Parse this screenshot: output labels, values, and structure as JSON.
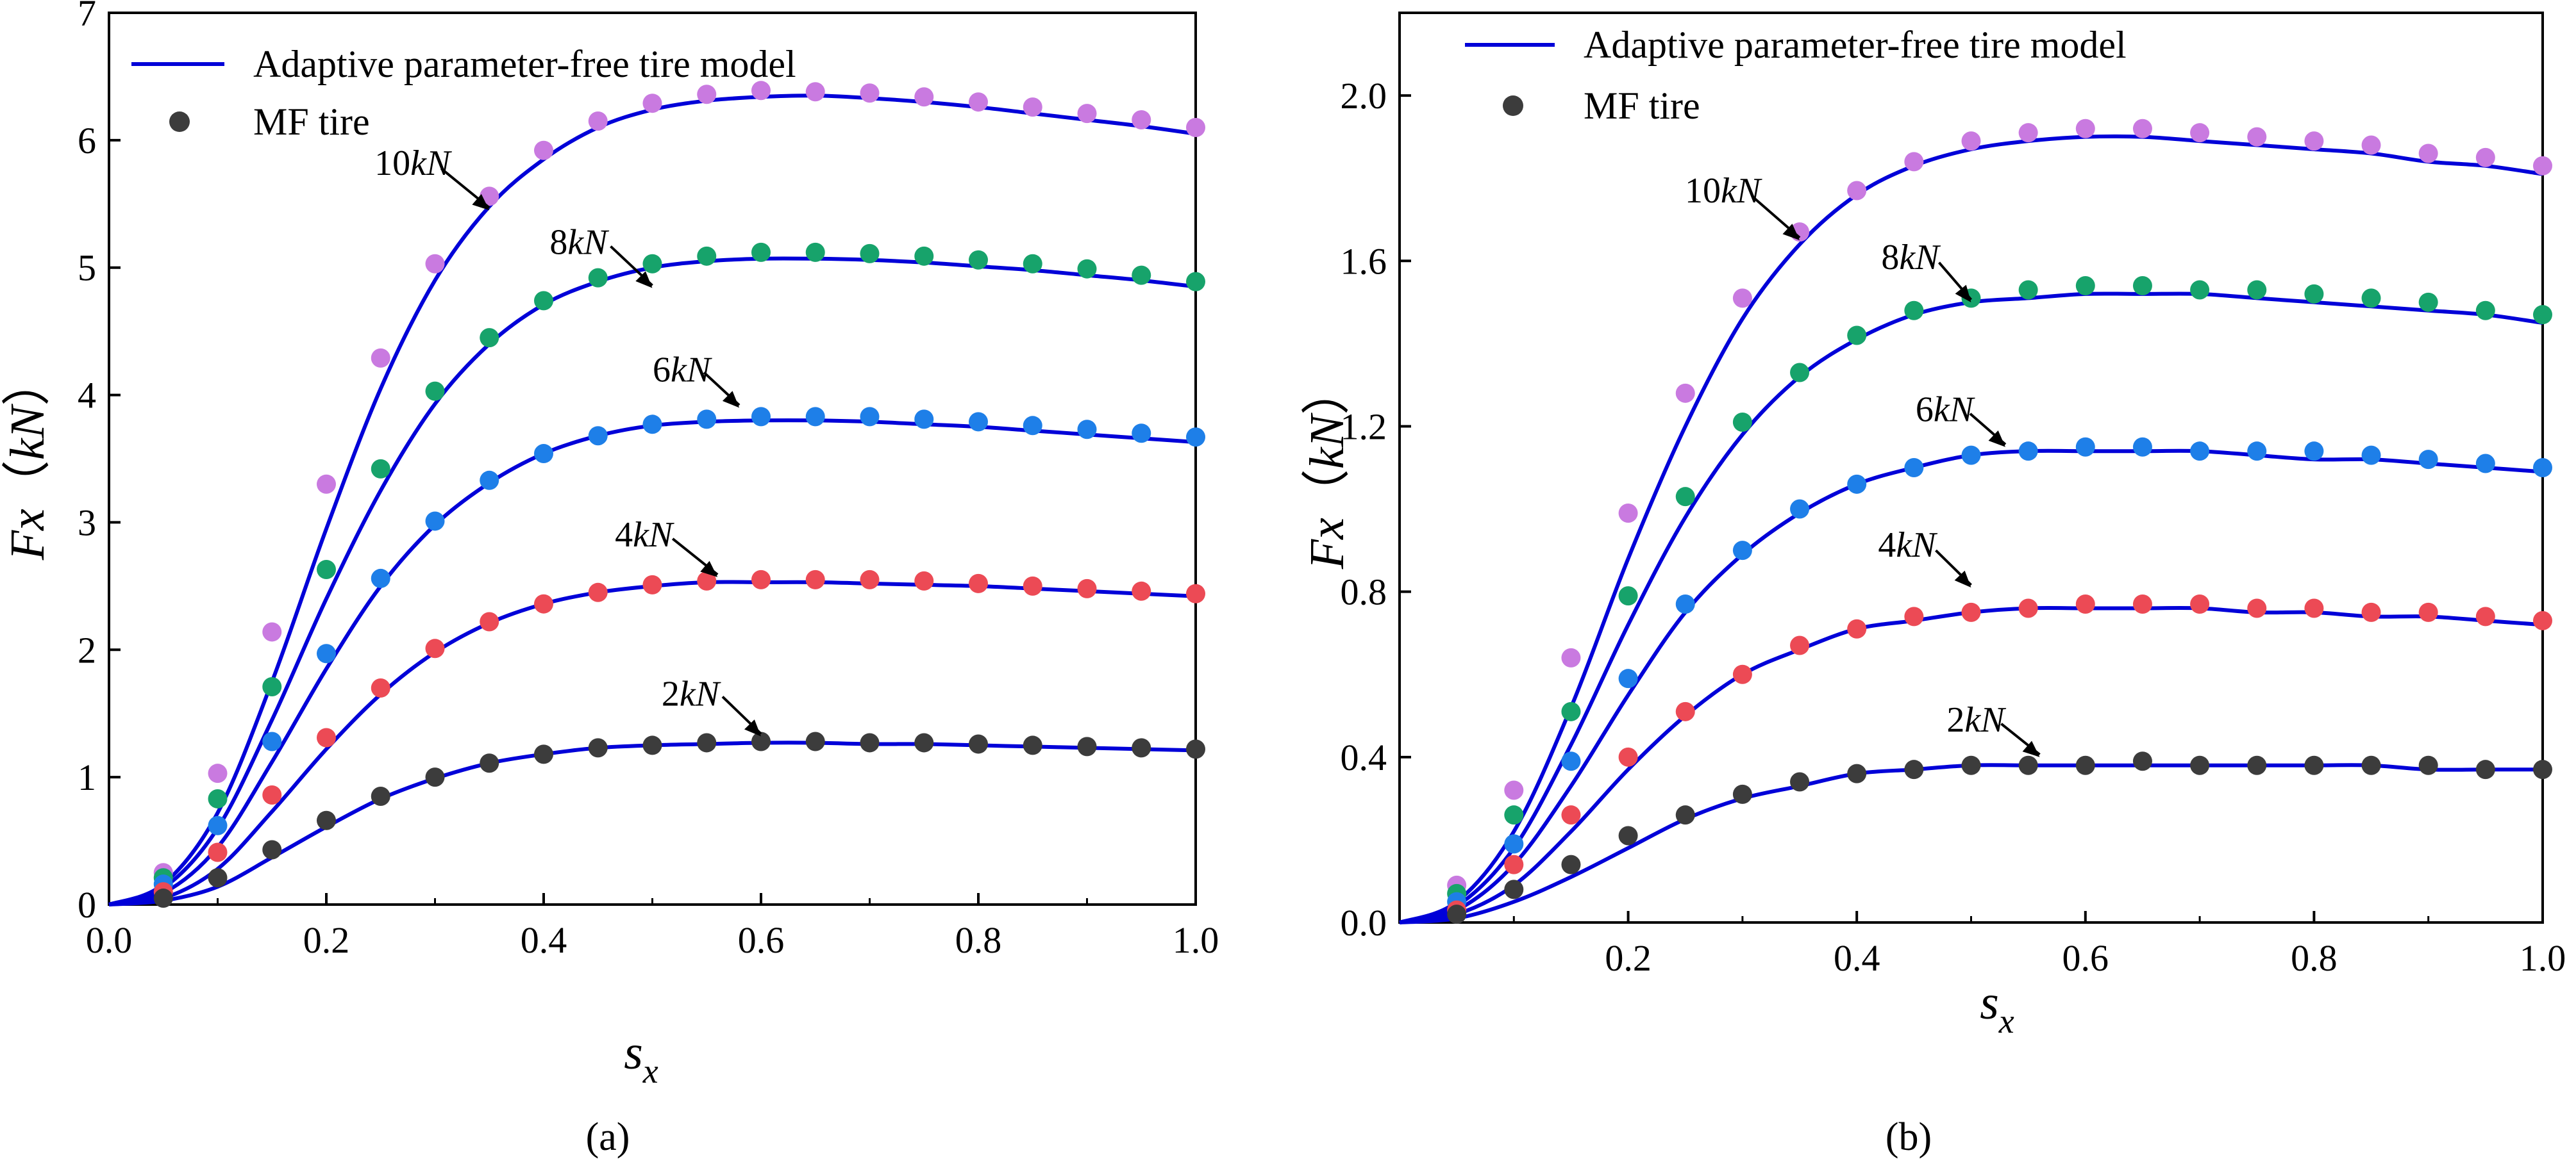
{
  "figure": {
    "captions": [
      "(a)",
      "(b)"
    ]
  },
  "chart_data": [
    {
      "id": "a",
      "type": "line",
      "caption": "(a)",
      "xlabel": "s",
      "xlabel_sub": "x",
      "ylabel": "Fx（kN）",
      "xlim": [
        0,
        1.0
      ],
      "ylim": [
        0,
        7
      ],
      "xticks": [
        0.0,
        0.2,
        0.4,
        0.6,
        0.8,
        1.0
      ],
      "xtick_labels": [
        "0.0",
        "0.2",
        "0.4",
        "0.6",
        "0.8",
        "1.0"
      ],
      "yticks": [
        0,
        1,
        2,
        3,
        4,
        5,
        6,
        7
      ],
      "ytick_labels": [
        "0",
        "1",
        "2",
        "3",
        "4",
        "5",
        "6",
        "7"
      ],
      "legend": {
        "position": "top-left",
        "entries": [
          {
            "label": "Adaptive parameter-free tire model",
            "marker": "line",
            "color": "#0000d8"
          },
          {
            "label": "MF tire",
            "marker": "dot",
            "color": "#3c3c3c"
          }
        ]
      },
      "grid": false,
      "model_line_color": "#0000d8",
      "x": [
        0.05,
        0.1,
        0.15,
        0.2,
        0.25,
        0.3,
        0.35,
        0.4,
        0.45,
        0.5,
        0.55,
        0.6,
        0.65,
        0.7,
        0.75,
        0.8,
        0.85,
        0.9,
        0.95,
        1.0
      ],
      "series": [
        {
          "name": "10kN",
          "label": "10kN",
          "color": "#c97ae0",
          "mf_values": [
            0.25,
            1.03,
            2.14,
            3.3,
            4.29,
            5.03,
            5.56,
            5.92,
            6.15,
            6.29,
            6.36,
            6.39,
            6.38,
            6.37,
            6.34,
            6.3,
            6.26,
            6.21,
            6.16,
            6.1
          ],
          "model_values": [
            0.16,
            0.72,
            1.75,
            2.95,
            4.05,
            4.9,
            5.48,
            5.85,
            6.1,
            6.24,
            6.31,
            6.34,
            6.35,
            6.33,
            6.3,
            6.26,
            6.21,
            6.16,
            6.11,
            6.05
          ],
          "annotation": {
            "x": 0.35,
            "y": 5.45
          }
        },
        {
          "name": "8kN",
          "label": "8kN",
          "color": "#17a36b",
          "mf_values": [
            0.21,
            0.83,
            1.71,
            2.63,
            3.42,
            4.03,
            4.45,
            4.74,
            4.92,
            5.03,
            5.09,
            5.12,
            5.12,
            5.11,
            5.09,
            5.06,
            5.03,
            4.99,
            4.94,
            4.89
          ],
          "model_values": [
            0.13,
            0.6,
            1.45,
            2.4,
            3.25,
            3.93,
            4.4,
            4.71,
            4.89,
            5.0,
            5.05,
            5.07,
            5.07,
            5.06,
            5.04,
            5.01,
            4.98,
            4.94,
            4.9,
            4.85
          ],
          "annotation": {
            "x": 0.5,
            "y": 4.84
          }
        },
        {
          "name": "6kN",
          "label": "6kN",
          "color": "#1e7fe8",
          "mf_values": [
            0.16,
            0.62,
            1.28,
            1.97,
            2.56,
            3.01,
            3.33,
            3.54,
            3.68,
            3.77,
            3.81,
            3.83,
            3.83,
            3.83,
            3.81,
            3.79,
            3.76,
            3.73,
            3.7,
            3.67
          ],
          "model_values": [
            0.09,
            0.45,
            1.12,
            1.85,
            2.5,
            2.98,
            3.31,
            3.54,
            3.68,
            3.76,
            3.79,
            3.8,
            3.8,
            3.79,
            3.77,
            3.75,
            3.72,
            3.69,
            3.66,
            3.63
          ],
          "annotation": {
            "x": 0.58,
            "y": 3.9
          }
        },
        {
          "name": "4kN",
          "label": "4kN",
          "color": "#ec4a55",
          "mf_values": [
            0.1,
            0.41,
            0.86,
            1.31,
            1.7,
            2.01,
            2.22,
            2.36,
            2.45,
            2.51,
            2.54,
            2.55,
            2.55,
            2.55,
            2.54,
            2.52,
            2.5,
            2.48,
            2.46,
            2.44
          ],
          "model_values": [
            0.05,
            0.28,
            0.73,
            1.22,
            1.65,
            1.98,
            2.21,
            2.36,
            2.45,
            2.5,
            2.53,
            2.53,
            2.53,
            2.52,
            2.51,
            2.5,
            2.48,
            2.46,
            2.44,
            2.42
          ],
          "annotation": {
            "x": 0.56,
            "y": 2.57
          }
        },
        {
          "name": "2kN",
          "label": "2kN",
          "color": "#3c3c3c",
          "mf_values": [
            0.05,
            0.21,
            0.43,
            0.66,
            0.85,
            1.0,
            1.11,
            1.18,
            1.23,
            1.25,
            1.27,
            1.28,
            1.28,
            1.27,
            1.27,
            1.26,
            1.25,
            1.24,
            1.23,
            1.22
          ],
          "model_values": [
            0.03,
            0.14,
            0.37,
            0.61,
            0.83,
            0.99,
            1.11,
            1.18,
            1.23,
            1.25,
            1.26,
            1.27,
            1.27,
            1.26,
            1.26,
            1.25,
            1.24,
            1.23,
            1.22,
            1.21
          ],
          "annotation": {
            "x": 0.6,
            "y": 1.32
          }
        }
      ]
    },
    {
      "id": "b",
      "type": "line",
      "caption": "(b)",
      "xlabel": "s",
      "xlabel_sub": "x",
      "ylabel": "Fx（kN）",
      "xlim": [
        0,
        1.0
      ],
      "ylim": [
        0,
        2.2
      ],
      "xticks": [
        0.2,
        0.4,
        0.6,
        0.8,
        1.0
      ],
      "xtick_labels": [
        "0.2",
        "0.4",
        "0.6",
        "0.8",
        "1.0"
      ],
      "yticks": [
        0.0,
        0.4,
        0.8,
        1.2,
        1.6,
        2.0
      ],
      "ytick_labels": [
        "0.0",
        "0.4",
        "0.8",
        "1.2",
        "1.6",
        "2.0"
      ],
      "legend": {
        "position": "top-left",
        "entries": [
          {
            "label": "Adaptive parameter-free tire model",
            "marker": "line",
            "color": "#0000d8"
          },
          {
            "label": "MF tire",
            "marker": "dot",
            "color": "#3c3c3c"
          }
        ]
      },
      "grid": false,
      "model_line_color": "#0000d8",
      "x": [
        0.05,
        0.1,
        0.15,
        0.2,
        0.25,
        0.3,
        0.35,
        0.4,
        0.45,
        0.5,
        0.55,
        0.6,
        0.65,
        0.7,
        0.75,
        0.8,
        0.85,
        0.9,
        0.95,
        1.0
      ],
      "series": [
        {
          "name": "10kN",
          "label": "10kN",
          "color": "#c97ae0",
          "mf_values": [
            0.09,
            0.32,
            0.64,
            0.99,
            1.28,
            1.51,
            1.67,
            1.77,
            1.84,
            1.89,
            1.91,
            1.92,
            1.92,
            1.91,
            1.9,
            1.89,
            1.88,
            1.86,
            1.85,
            1.83
          ],
          "model_values": [
            0.05,
            0.22,
            0.52,
            0.88,
            1.2,
            1.46,
            1.64,
            1.76,
            1.83,
            1.87,
            1.89,
            1.9,
            1.9,
            1.89,
            1.88,
            1.87,
            1.86,
            1.84,
            1.83,
            1.81
          ],
          "annotation": {
            "x": 0.35,
            "y": 1.65
          }
        },
        {
          "name": "8kN",
          "label": "8kN",
          "color": "#17a36b",
          "mf_values": [
            0.07,
            0.26,
            0.51,
            0.79,
            1.03,
            1.21,
            1.33,
            1.42,
            1.48,
            1.51,
            1.53,
            1.54,
            1.54,
            1.53,
            1.53,
            1.52,
            1.51,
            1.5,
            1.48,
            1.47
          ],
          "model_values": [
            0.04,
            0.18,
            0.43,
            0.72,
            0.98,
            1.18,
            1.32,
            1.41,
            1.47,
            1.5,
            1.51,
            1.52,
            1.52,
            1.52,
            1.51,
            1.5,
            1.49,
            1.48,
            1.47,
            1.45
          ],
          "annotation": {
            "x": 0.5,
            "y": 1.5
          }
        },
        {
          "name": "6kN",
          "label": "6kN",
          "color": "#1e7fe8",
          "mf_values": [
            0.05,
            0.19,
            0.39,
            0.59,
            0.77,
            0.9,
            1.0,
            1.06,
            1.1,
            1.13,
            1.14,
            1.15,
            1.15,
            1.14,
            1.14,
            1.14,
            1.13,
            1.12,
            1.11,
            1.1
          ],
          "model_values": [
            0.03,
            0.14,
            0.33,
            0.55,
            0.75,
            0.89,
            0.99,
            1.06,
            1.1,
            1.13,
            1.14,
            1.14,
            1.14,
            1.14,
            1.13,
            1.12,
            1.12,
            1.11,
            1.1,
            1.09
          ],
          "annotation": {
            "x": 0.53,
            "y": 1.15
          }
        },
        {
          "name": "4kN",
          "label": "4kN",
          "color": "#ec4a55",
          "mf_values": [
            0.03,
            0.14,
            0.26,
            0.4,
            0.51,
            0.6,
            0.67,
            0.71,
            0.74,
            0.75,
            0.76,
            0.77,
            0.77,
            0.77,
            0.76,
            0.76,
            0.75,
            0.75,
            0.74,
            0.73
          ],
          "model_values": [
            0.02,
            0.09,
            0.22,
            0.37,
            0.5,
            0.6,
            0.66,
            0.71,
            0.73,
            0.75,
            0.76,
            0.76,
            0.76,
            0.76,
            0.75,
            0.75,
            0.74,
            0.74,
            0.73,
            0.72
          ],
          "annotation": {
            "x": 0.5,
            "y": 0.81
          }
        },
        {
          "name": "2kN",
          "label": "2kN",
          "color": "#3c3c3c",
          "mf_values": [
            0.02,
            0.08,
            0.14,
            0.21,
            0.26,
            0.31,
            0.34,
            0.36,
            0.37,
            0.38,
            0.38,
            0.38,
            0.39,
            0.38,
            0.38,
            0.38,
            0.38,
            0.38,
            0.37,
            0.37
          ],
          "model_values": [
            0.01,
            0.05,
            0.11,
            0.18,
            0.25,
            0.3,
            0.33,
            0.36,
            0.37,
            0.38,
            0.38,
            0.38,
            0.38,
            0.38,
            0.38,
            0.38,
            0.38,
            0.37,
            0.37,
            0.37
          ],
          "annotation": {
            "x": 0.56,
            "y": 0.4
          }
        }
      ]
    }
  ]
}
